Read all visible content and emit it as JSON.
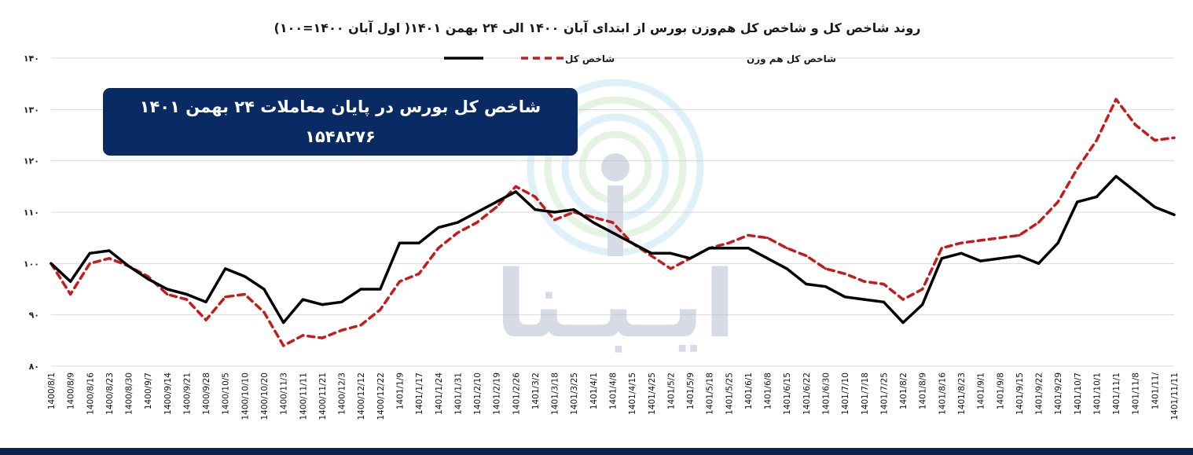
{
  "chart_data": {
    "type": "line",
    "title": "روند شاخص کل و شاخص کل هم‌وزن بورس از ابتدای آبان ۱۴۰۰ الی ۲۴ بهمن ۱۴۰۱( اول آبان ۱۴۰۰=۱۰۰)",
    "ylim": [
      80,
      140
    ],
    "yticks": [
      80,
      90,
      100,
      110,
      120,
      130,
      140
    ],
    "ytick_labels": [
      "۸۰",
      "۹۰",
      "۱۰۰",
      "۱۱۰",
      "۱۲۰",
      "۱۳۰",
      "۱۴۰"
    ],
    "grid": "horizontal",
    "legend_position": "top",
    "x_tick_labels": [
      "1400/8/1",
      "1400/8/9",
      "1400/8/16",
      "1400/8/23",
      "1400/8/30",
      "1400/9/7",
      "1400/9/14",
      "1400/9/21",
      "1400/9/28",
      "1400/10/5",
      "1400/10/10",
      "1400/10/20",
      "1400/11/3",
      "1400/11/11",
      "1400/11/21",
      "1400/12/3",
      "1400/12/12",
      "1400/12/22",
      "1401/1/9",
      "1401/1/17",
      "1401/1/24",
      "1401/1/31",
      "1401/2/10",
      "1401/2/19",
      "1401/2/26",
      "1401/3/2",
      "1401/3/18",
      "1401/3/25",
      "1401/4/1",
      "1401/4/8",
      "1401/4/15",
      "1401/4/25",
      "1401/5/2",
      "1401/5/9",
      "1401/5/18",
      "1401/5/25",
      "1401/6/1",
      "1401/6/8",
      "1401/6/15",
      "1401/6/22",
      "1401/6/30",
      "1401/7/10",
      "1401/7/18",
      "1401/7/25",
      "1401/8/2",
      "1401/8/9",
      "1401/8/16",
      "1401/8/23",
      "1401/9/1",
      "1401/9/8",
      "1401/9/15",
      "1401/9/22",
      "1401/9/29",
      "1401/10/7",
      "1401/10/1",
      "1401/11/1",
      "1401/11/8",
      "1401/11/",
      "1401/11/11"
    ],
    "x": [
      "1400/8/1",
      "1400/8/9",
      "1400/8/16",
      "1400/8/23",
      "1400/8/30",
      "1400/9/7",
      "1400/9/14",
      "1400/9/21",
      "1400/9/28",
      "1400/10/5",
      "1400/10/10",
      "1400/10/20",
      "1400/11/3",
      "1400/11/11",
      "1400/11/21",
      "1400/12/3",
      "1400/12/12",
      "1400/12/22",
      "1401/1/9",
      "1401/1/17",
      "1401/1/24",
      "1401/1/31",
      "1401/2/10",
      "1401/2/19",
      "1401/2/26",
      "1401/3/2",
      "1401/3/18",
      "1401/3/25",
      "1401/4/1",
      "1401/4/8",
      "1401/4/15",
      "1401/4/25",
      "1401/5/2",
      "1401/5/9",
      "1401/5/18",
      "1401/5/25",
      "1401/6/1",
      "1401/6/8",
      "1401/6/15",
      "1401/6/22",
      "1401/6/30",
      "1401/7/10",
      "1401/7/18",
      "1401/7/25",
      "1401/8/2",
      "1401/8/9",
      "1401/8/16",
      "1401/8/23",
      "1401/9/1",
      "1401/9/8",
      "1401/9/15",
      "1401/9/22",
      "1401/9/29",
      "1401/10/7",
      "1401/10/1",
      "1401/11/1",
      "1401/11/8",
      "1401/11/",
      "1401/11/11"
    ],
    "series": [
      {
        "name": "شاخص کل",
        "color": "#000000",
        "style": "solid",
        "values": [
          100,
          96.5,
          102,
          102.5,
          99.5,
          97,
          95,
          94,
          92.5,
          99,
          97.5,
          95,
          88.5,
          93,
          92,
          92.5,
          95,
          95,
          104,
          104,
          107,
          108,
          110,
          112,
          114,
          110.5,
          110,
          110.5,
          108,
          106,
          104,
          102,
          102,
          101,
          103,
          103,
          103,
          101,
          99,
          96,
          95.5,
          93.5,
          93,
          92.5,
          88.5,
          92,
          101,
          102,
          100.5,
          101,
          101.5,
          100,
          104,
          112,
          113,
          117,
          114,
          111,
          109.5
        ]
      },
      {
        "name": "شاخص کل هم وزن",
        "color": "#c41c1c",
        "style": "dashed",
        "values": [
          100,
          94,
          100,
          101,
          99.5,
          97.5,
          94,
          93,
          89,
          93.5,
          94,
          90.5,
          84,
          86,
          85.5,
          87,
          88,
          91,
          96.5,
          98,
          103,
          106,
          108,
          111,
          115,
          113,
          108.5,
          110,
          109,
          108,
          104,
          101.5,
          99,
          101,
          103,
          104,
          105.5,
          105,
          103,
          101.5,
          99,
          98,
          96.5,
          96,
          93,
          95,
          103,
          104,
          104.5,
          105,
          105.5,
          108,
          112,
          118.5,
          124,
          132,
          127,
          124,
          124.5
        ]
      }
    ]
  },
  "legend": {
    "total_label": "شاخص کل",
    "equal_label": "شاخص کل هم وزن"
  },
  "banner": {
    "line1": "شاخص کل بورس در پایان معاملات ۲۴ بهمن ۱۴۰۱",
    "line2": "۱۵۴۸۲۷۶",
    "color": "#0a2a63"
  },
  "watermark": {
    "text": "ایـبـنا",
    "icon": "broadcast-signal-icon"
  },
  "colors": {
    "total_line": "#000000",
    "equal_weight_line": "#c41c1c",
    "banner_bg": "#0a2a63",
    "bottom_bar": "#0d2349"
  }
}
